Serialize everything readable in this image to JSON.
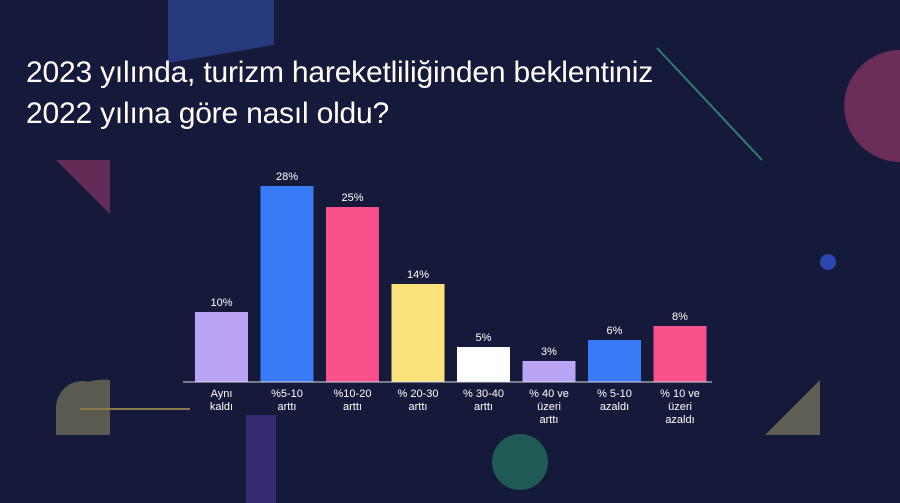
{
  "title": {
    "line1": "2023 yılında, turizm hareketliliğinden beklentiniz",
    "line2": "2022 yılına göre nasıl oldu?"
  },
  "colors": {
    "background": "#161a3a",
    "purple": "#b9a4f5",
    "blue": "#3a7cf7",
    "pink": "#f7508b",
    "yellow": "#fbe27a",
    "white": "#ffffff"
  },
  "chart_data": {
    "type": "bar",
    "title": "",
    "xlabel": "",
    "ylabel": "",
    "ylim": [
      0,
      30
    ],
    "grid": false,
    "value_suffix": "%",
    "categories": [
      "Aynı kaldı",
      "%5-10 arttı",
      "%10-20 arttı",
      "% 20-30 arttı",
      "% 30-40 arttı",
      "% 40 ve üzeri arttı",
      "% 5-10 azaldı",
      "% 10 ve üzeri azaldı"
    ],
    "category_lines": [
      [
        "Aynı",
        "kaldı"
      ],
      [
        "%5-10",
        "arttı"
      ],
      [
        "%10-20",
        "arttı"
      ],
      [
        "% 20-30",
        "arttı"
      ],
      [
        "% 30-40",
        "arttı"
      ],
      [
        "% 40 ve",
        "üzeri",
        "arttı"
      ],
      [
        "% 5-10",
        "azaldı"
      ],
      [
        "% 10 ve",
        "üzeri",
        "azaldı"
      ]
    ],
    "values": [
      10,
      28,
      25,
      14,
      5,
      3,
      6,
      8
    ],
    "bar_colors": [
      "#b9a4f5",
      "#3a7cf7",
      "#f7508b",
      "#fbe27a",
      "#ffffff",
      "#b9a4f5",
      "#3a7cf7",
      "#f7508b"
    ]
  }
}
